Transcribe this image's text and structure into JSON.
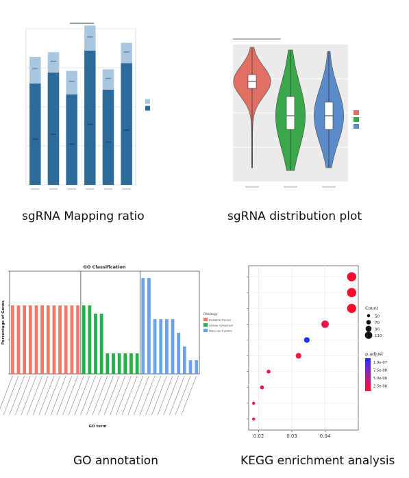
{
  "captions": {
    "mapping": "sgRNA Mapping ratio",
    "distribution": "sgRNA distribution plot",
    "go": "GO annotation",
    "kegg": "KEGG enrichment analysis"
  },
  "colors": {
    "mapped": "#2f6b9a",
    "unmapped": "#a9c8e0",
    "bio": "#f2786a",
    "cell": "#23b04a",
    "mol": "#6aa3ea",
    "violin_red": "#e07064",
    "violin_green": "#3aa84a",
    "violin_blue": "#5b8cc9",
    "kegg_high": "#ff1030",
    "kegg_low": "#2030ff"
  },
  "chart_data": [
    {
      "id": "mapping",
      "type": "bar",
      "stacked": true,
      "categories": [
        "",
        "",
        "",
        "",
        "",
        ""
      ],
      "series": [
        {
          "name": "",
          "values": [
            0.65,
            0.72,
            0.58,
            0.86,
            0.61,
            0.78
          ]
        },
        {
          "name": "",
          "values": [
            0.17,
            0.13,
            0.15,
            0.16,
            0.13,
            0.13
          ]
        }
      ],
      "legend": {
        "title": "",
        "entries": [
          "",
          ""
        ]
      },
      "ylim": [
        0,
        1
      ],
      "grid": true
    },
    {
      "id": "distribution",
      "type": "violin",
      "categories": [
        "",
        "",
        ""
      ],
      "series": [
        {
          "name": "",
          "median": 0.73,
          "q1": 0.68,
          "q3": 0.78,
          "min": 0.1,
          "max": 0.98,
          "width": 0.95
        },
        {
          "name": "",
          "median": 0.48,
          "q1": 0.38,
          "q3": 0.62,
          "min": 0.08,
          "max": 0.96,
          "width": 0.75
        },
        {
          "name": "",
          "median": 0.48,
          "q1": 0.38,
          "q3": 0.58,
          "min": 0.1,
          "max": 0.95,
          "width": 0.75
        }
      ],
      "legend": {
        "title": "",
        "entries": [
          "",
          "",
          ""
        ]
      }
    },
    {
      "id": "go",
      "type": "bar",
      "title": "GO Classification",
      "xlabel": "GO term",
      "ylabel": "Percentage of Genes",
      "facets": [
        "Biological Process",
        "Cellular Component",
        "Molecular Function"
      ],
      "legend": {
        "title": "Ontology",
        "entries": [
          "Biological Process",
          "Cellular Component",
          "Molecular Function"
        ]
      },
      "values": {
        "Biological Process": [
          5,
          5,
          5,
          5,
          5,
          5,
          5,
          5,
          5,
          5,
          5,
          5
        ],
        "Cellular Component": [
          5,
          5,
          4.4,
          4.4,
          1.5,
          1.5,
          1.5,
          1.5,
          1.5,
          1.5
        ],
        "Molecular Function": [
          7,
          7,
          4,
          4,
          4,
          4,
          3,
          2,
          1,
          1
        ]
      },
      "ylim": [
        0,
        7.5
      ],
      "yticks": [
        0,
        2.5,
        5,
        7.5
      ]
    },
    {
      "id": "kegg",
      "type": "scatter",
      "x": [
        0.048,
        0.048,
        0.048,
        0.04,
        0.0345,
        0.032,
        0.023,
        0.021,
        0.0185,
        0.0185
      ],
      "sizes": [
        110,
        110,
        110,
        90,
        70,
        70,
        50,
        50,
        40,
        40
      ],
      "padj": [
        2e-07,
        2e-07,
        2e-07,
        2.5e-07,
        1e-08,
        2.5e-07,
        2.5e-07,
        2.5e-07,
        2.5e-07,
        2.5e-07
      ],
      "xticks": [
        "0.02",
        "0.03",
        "0.04"
      ],
      "xlim": [
        0.017,
        0.05
      ],
      "size_legend": {
        "title": "Count",
        "values": [
          "50",
          "70",
          "90",
          "110"
        ]
      },
      "color_legend": {
        "title": "p.adjust",
        "values": [
          "1.0e-07",
          "7.5e-08",
          "5.0e-08",
          "2.5e-08"
        ]
      }
    }
  ]
}
